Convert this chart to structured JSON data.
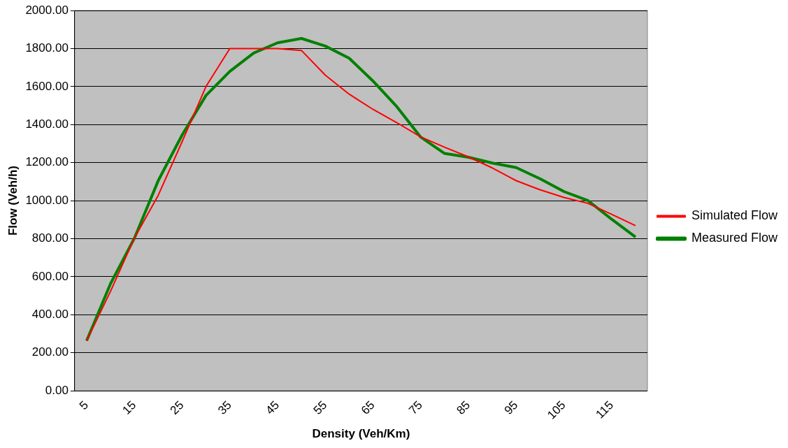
{
  "chart_data": {
    "type": "line",
    "xlabel": "Density (Veh/Km)",
    "ylabel": "Flow (Veh/h)",
    "categories": [
      "5",
      null,
      "15",
      null,
      "25",
      null,
      "35",
      null,
      "45",
      null,
      "55",
      null,
      "65",
      null,
      "75",
      null,
      "85",
      null,
      "95",
      null,
      "105",
      null,
      "115",
      null
    ],
    "series": [
      {
        "name": "Simulated Flow",
        "color": "#ff0000",
        "values": [
          263,
          523,
          803,
          1028,
          1310,
          1600,
          1800,
          1800,
          1800,
          1790,
          1660,
          1560,
          1480,
          1410,
          1335,
          1281,
          1230,
          1172,
          1105,
          1057,
          1017,
          986,
          928,
          868
        ]
      },
      {
        "name": "Measured Flow",
        "color": "#008000",
        "values": [
          263,
          563,
          802,
          1105,
          1345,
          1553,
          1680,
          1776,
          1830,
          1853,
          1813,
          1749,
          1629,
          1494,
          1334,
          1248,
          1228,
          1198,
          1174,
          1115,
          1048,
          1001,
          902,
          809
        ]
      }
    ],
    "ylim": [
      0,
      2000
    ],
    "yticks": [
      {
        "value": 0,
        "label": "0.00"
      },
      {
        "value": 200,
        "label": "200.00"
      },
      {
        "value": 400,
        "label": "400.00"
      },
      {
        "value": 600,
        "label": "600.00"
      },
      {
        "value": 800,
        "label": "800.00"
      },
      {
        "value": 1000,
        "label": "1000.00"
      },
      {
        "value": 1200,
        "label": "1200.00"
      },
      {
        "value": 1400,
        "label": "1400.00"
      },
      {
        "value": 1600,
        "label": "1600.00"
      },
      {
        "value": 1800,
        "label": "1800.00"
      },
      {
        "value": 2000,
        "label": "2000.00"
      }
    ],
    "grid": "y",
    "legend": "right",
    "marker": "none",
    "line_style": "solid"
  }
}
